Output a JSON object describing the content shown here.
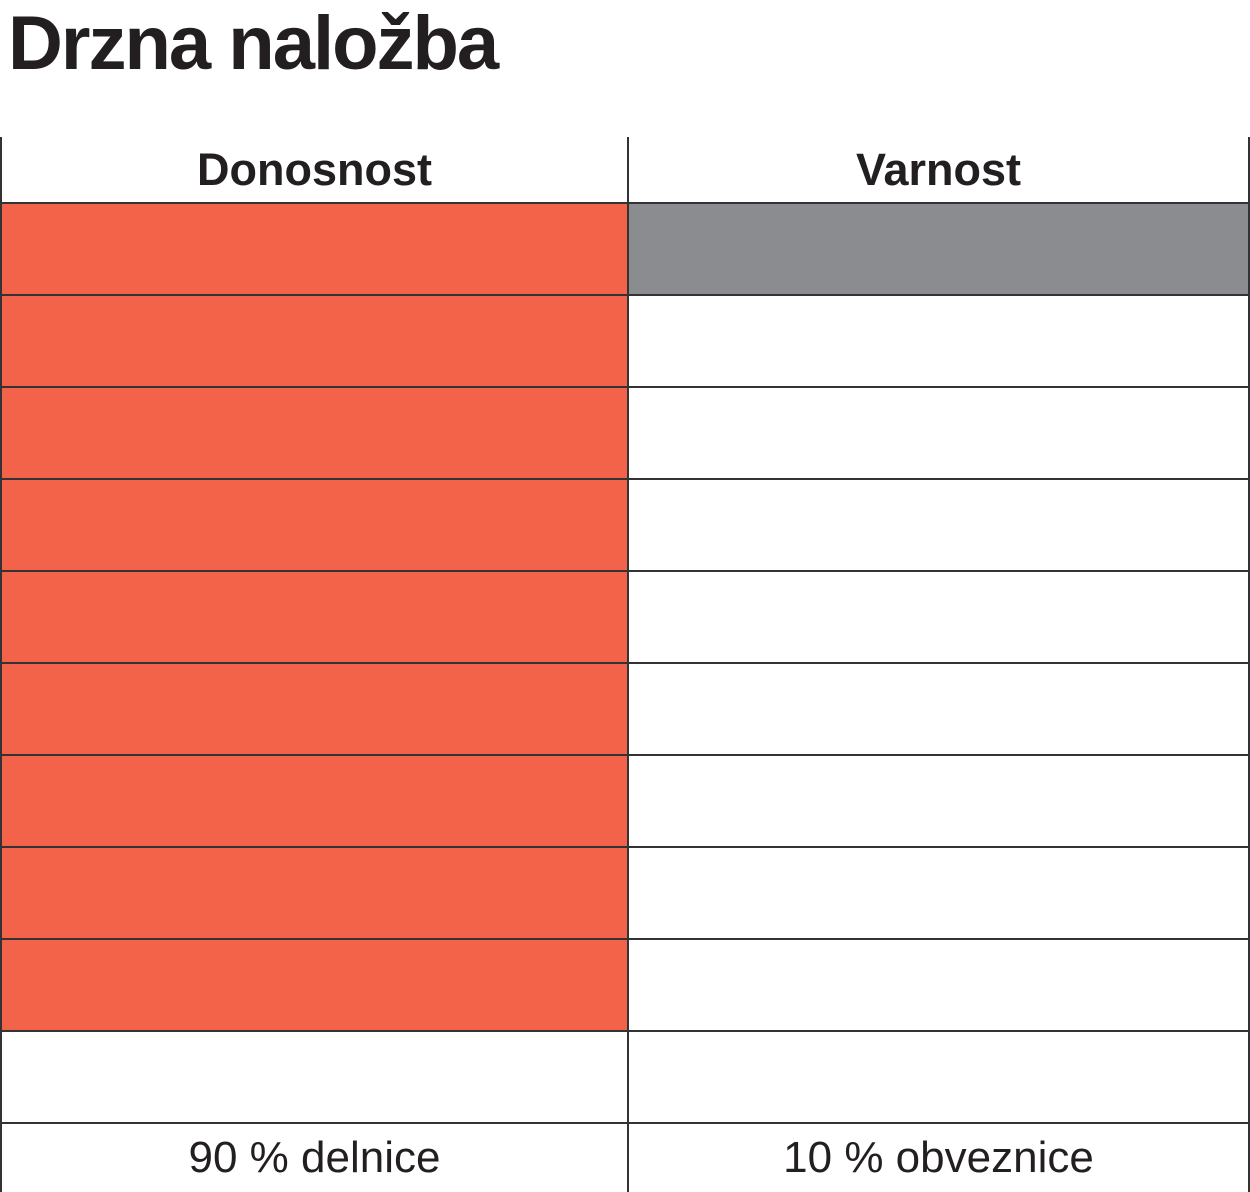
{
  "title": "Drzna naložba",
  "columns": [
    {
      "id": "donosnost",
      "header": "Donosnost",
      "footer": "90 % delnice"
    },
    {
      "id": "varnost",
      "header": "Varnost",
      "footer": "10 % obveznice"
    }
  ],
  "grid": {
    "total_rows": 10,
    "rows": [
      {
        "donosnost": true,
        "varnost": true
      },
      {
        "donosnost": true,
        "varnost": false
      },
      {
        "donosnost": true,
        "varnost": false
      },
      {
        "donosnost": true,
        "varnost": false
      },
      {
        "donosnost": true,
        "varnost": false
      },
      {
        "donosnost": true,
        "varnost": false
      },
      {
        "donosnost": true,
        "varnost": false
      },
      {
        "donosnost": true,
        "varnost": false
      },
      {
        "donosnost": true,
        "varnost": false
      },
      {
        "donosnost": false,
        "varnost": false
      }
    ]
  },
  "colors": {
    "fill_red": "#F2634A",
    "fill_gray": "#8A8C8F",
    "border": "#333333",
    "text": "#231F20",
    "background": "#FFFFFF"
  },
  "chart_data": {
    "type": "bar",
    "title": "Drzna naložba",
    "categories": [
      "Donosnost",
      "Varnost"
    ],
    "series": [
      {
        "name": "filled_units",
        "values": [
          9,
          1
        ]
      }
    ],
    "unit_total_per_column": 10,
    "value_labels": [
      "90 % delnice",
      "10 % obveznice"
    ],
    "orientation": "vertical-unit-stack-top-down",
    "legend": "none",
    "grid": "on",
    "column_colors": {
      "Donosnost": "#F2634A",
      "Varnost": "#8A8C8F"
    }
  }
}
